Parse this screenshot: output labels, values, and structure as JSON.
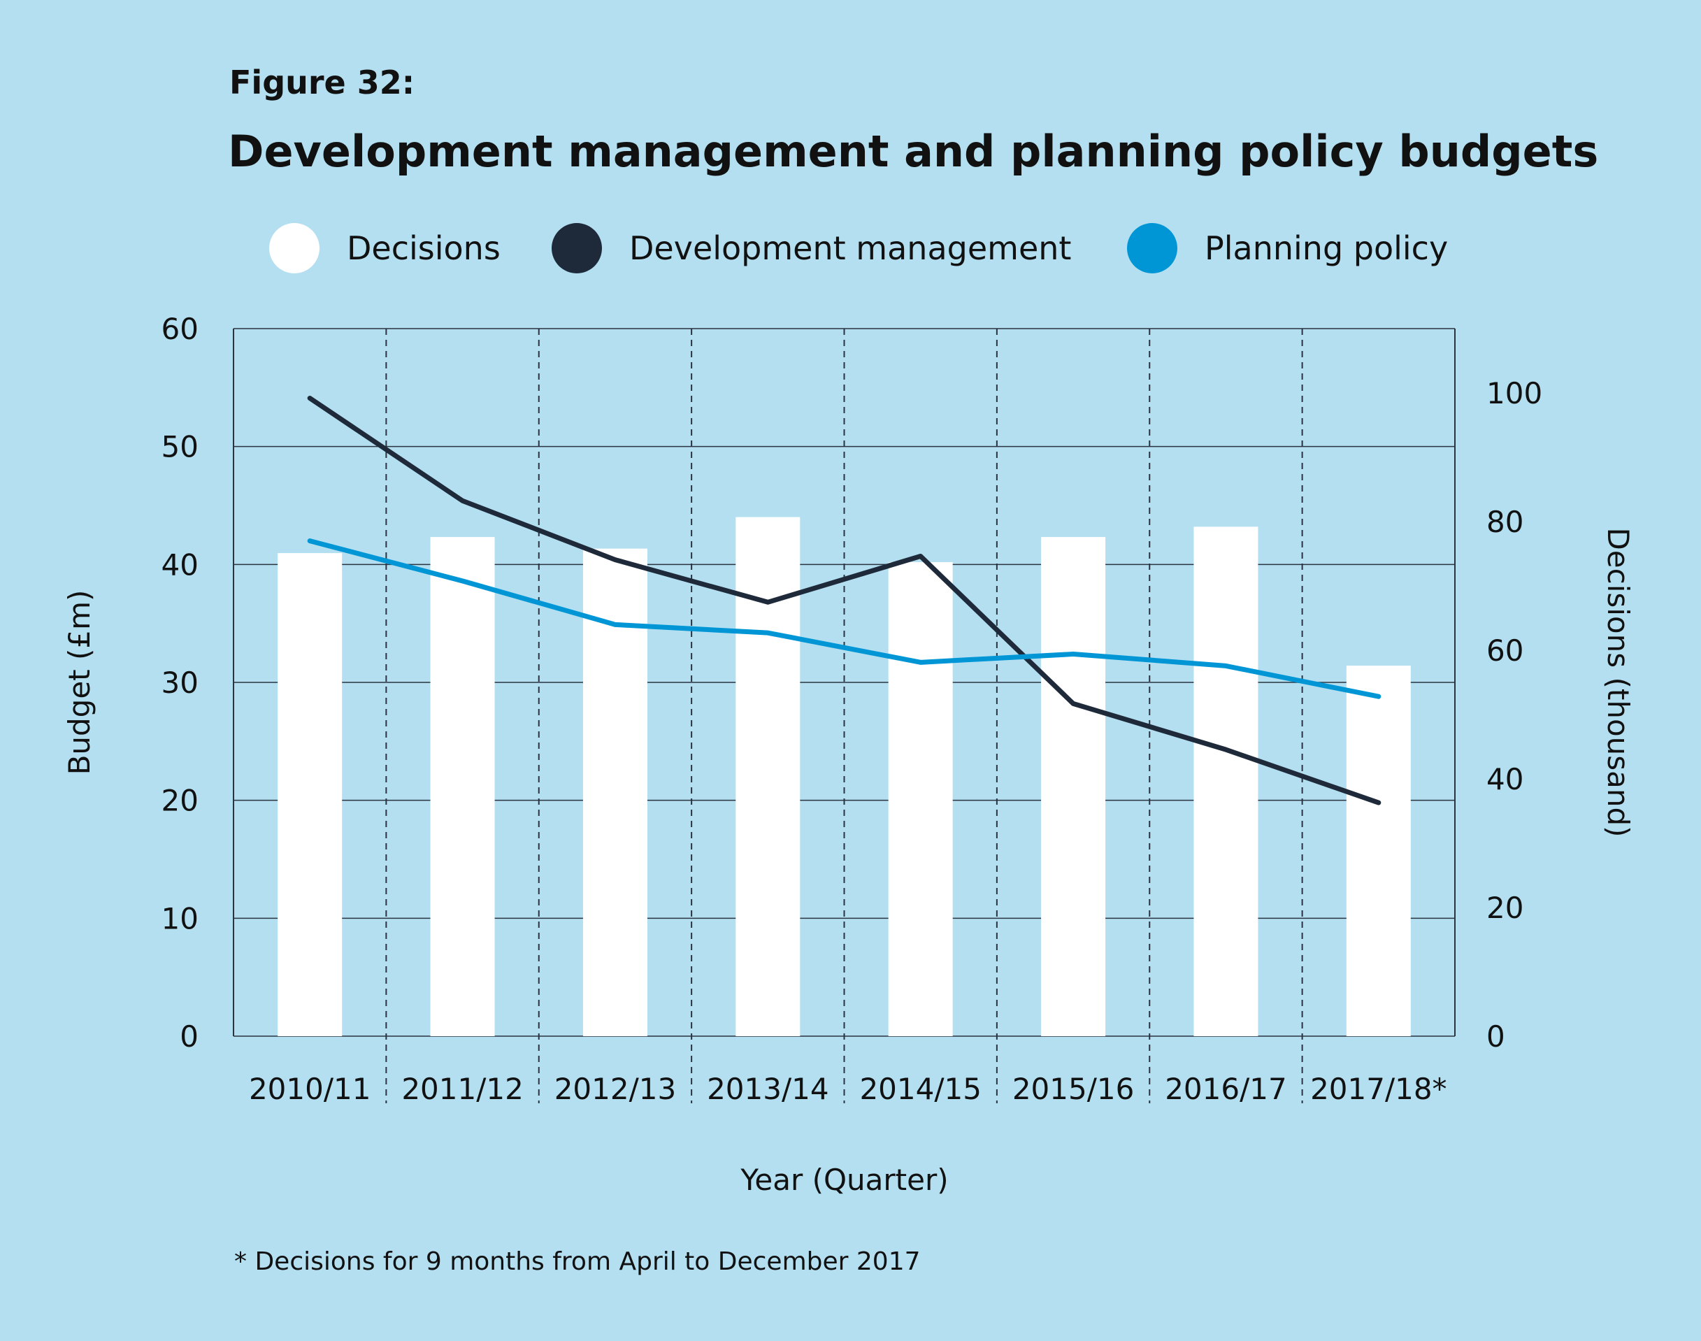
{
  "figure_label": "Figure 32:",
  "chart_data": {
    "type": "bar+line",
    "title": "Development management and planning policy budgets",
    "categories": [
      "2010/11",
      "2011/12",
      "2012/13",
      "2013/14",
      "2014/15",
      "2015/16",
      "2016/17",
      "2017/18*"
    ],
    "xlabel": "Year (Quarter)",
    "ylabel_left": "Budget (£m)",
    "ylabel_right": "Decisions (thousand)",
    "ylim_left": [
      0,
      60
    ],
    "yticks_left": [
      0,
      10,
      20,
      30,
      40,
      50,
      60
    ],
    "ylim_right": [
      0,
      110
    ],
    "yticks_right": [
      0,
      20,
      40,
      60,
      80,
      100
    ],
    "grid": "horizontal solid, vertical dashed between categories",
    "legend_position": "top",
    "series": [
      {
        "name": "Decisions",
        "type": "bar",
        "axis": "right",
        "color": "#ffffff",
        "values": [
          75.1,
          77.6,
          75.8,
          80.7,
          73.7,
          77.6,
          79.2,
          57.6
        ]
      },
      {
        "name": "Development management",
        "type": "line",
        "axis": "left",
        "color": "#1e2a3a",
        "values": [
          54.1,
          45.4,
          40.4,
          36.8,
          40.7,
          28.2,
          24.3,
          19.8
        ]
      },
      {
        "name": "Planning policy",
        "type": "line",
        "axis": "left",
        "color": "#0096d6",
        "values": [
          42.0,
          38.6,
          34.9,
          34.2,
          31.7,
          32.4,
          31.4,
          28.8
        ]
      }
    ],
    "footnote": "* Decisions for 9 months from April to December 2017"
  }
}
